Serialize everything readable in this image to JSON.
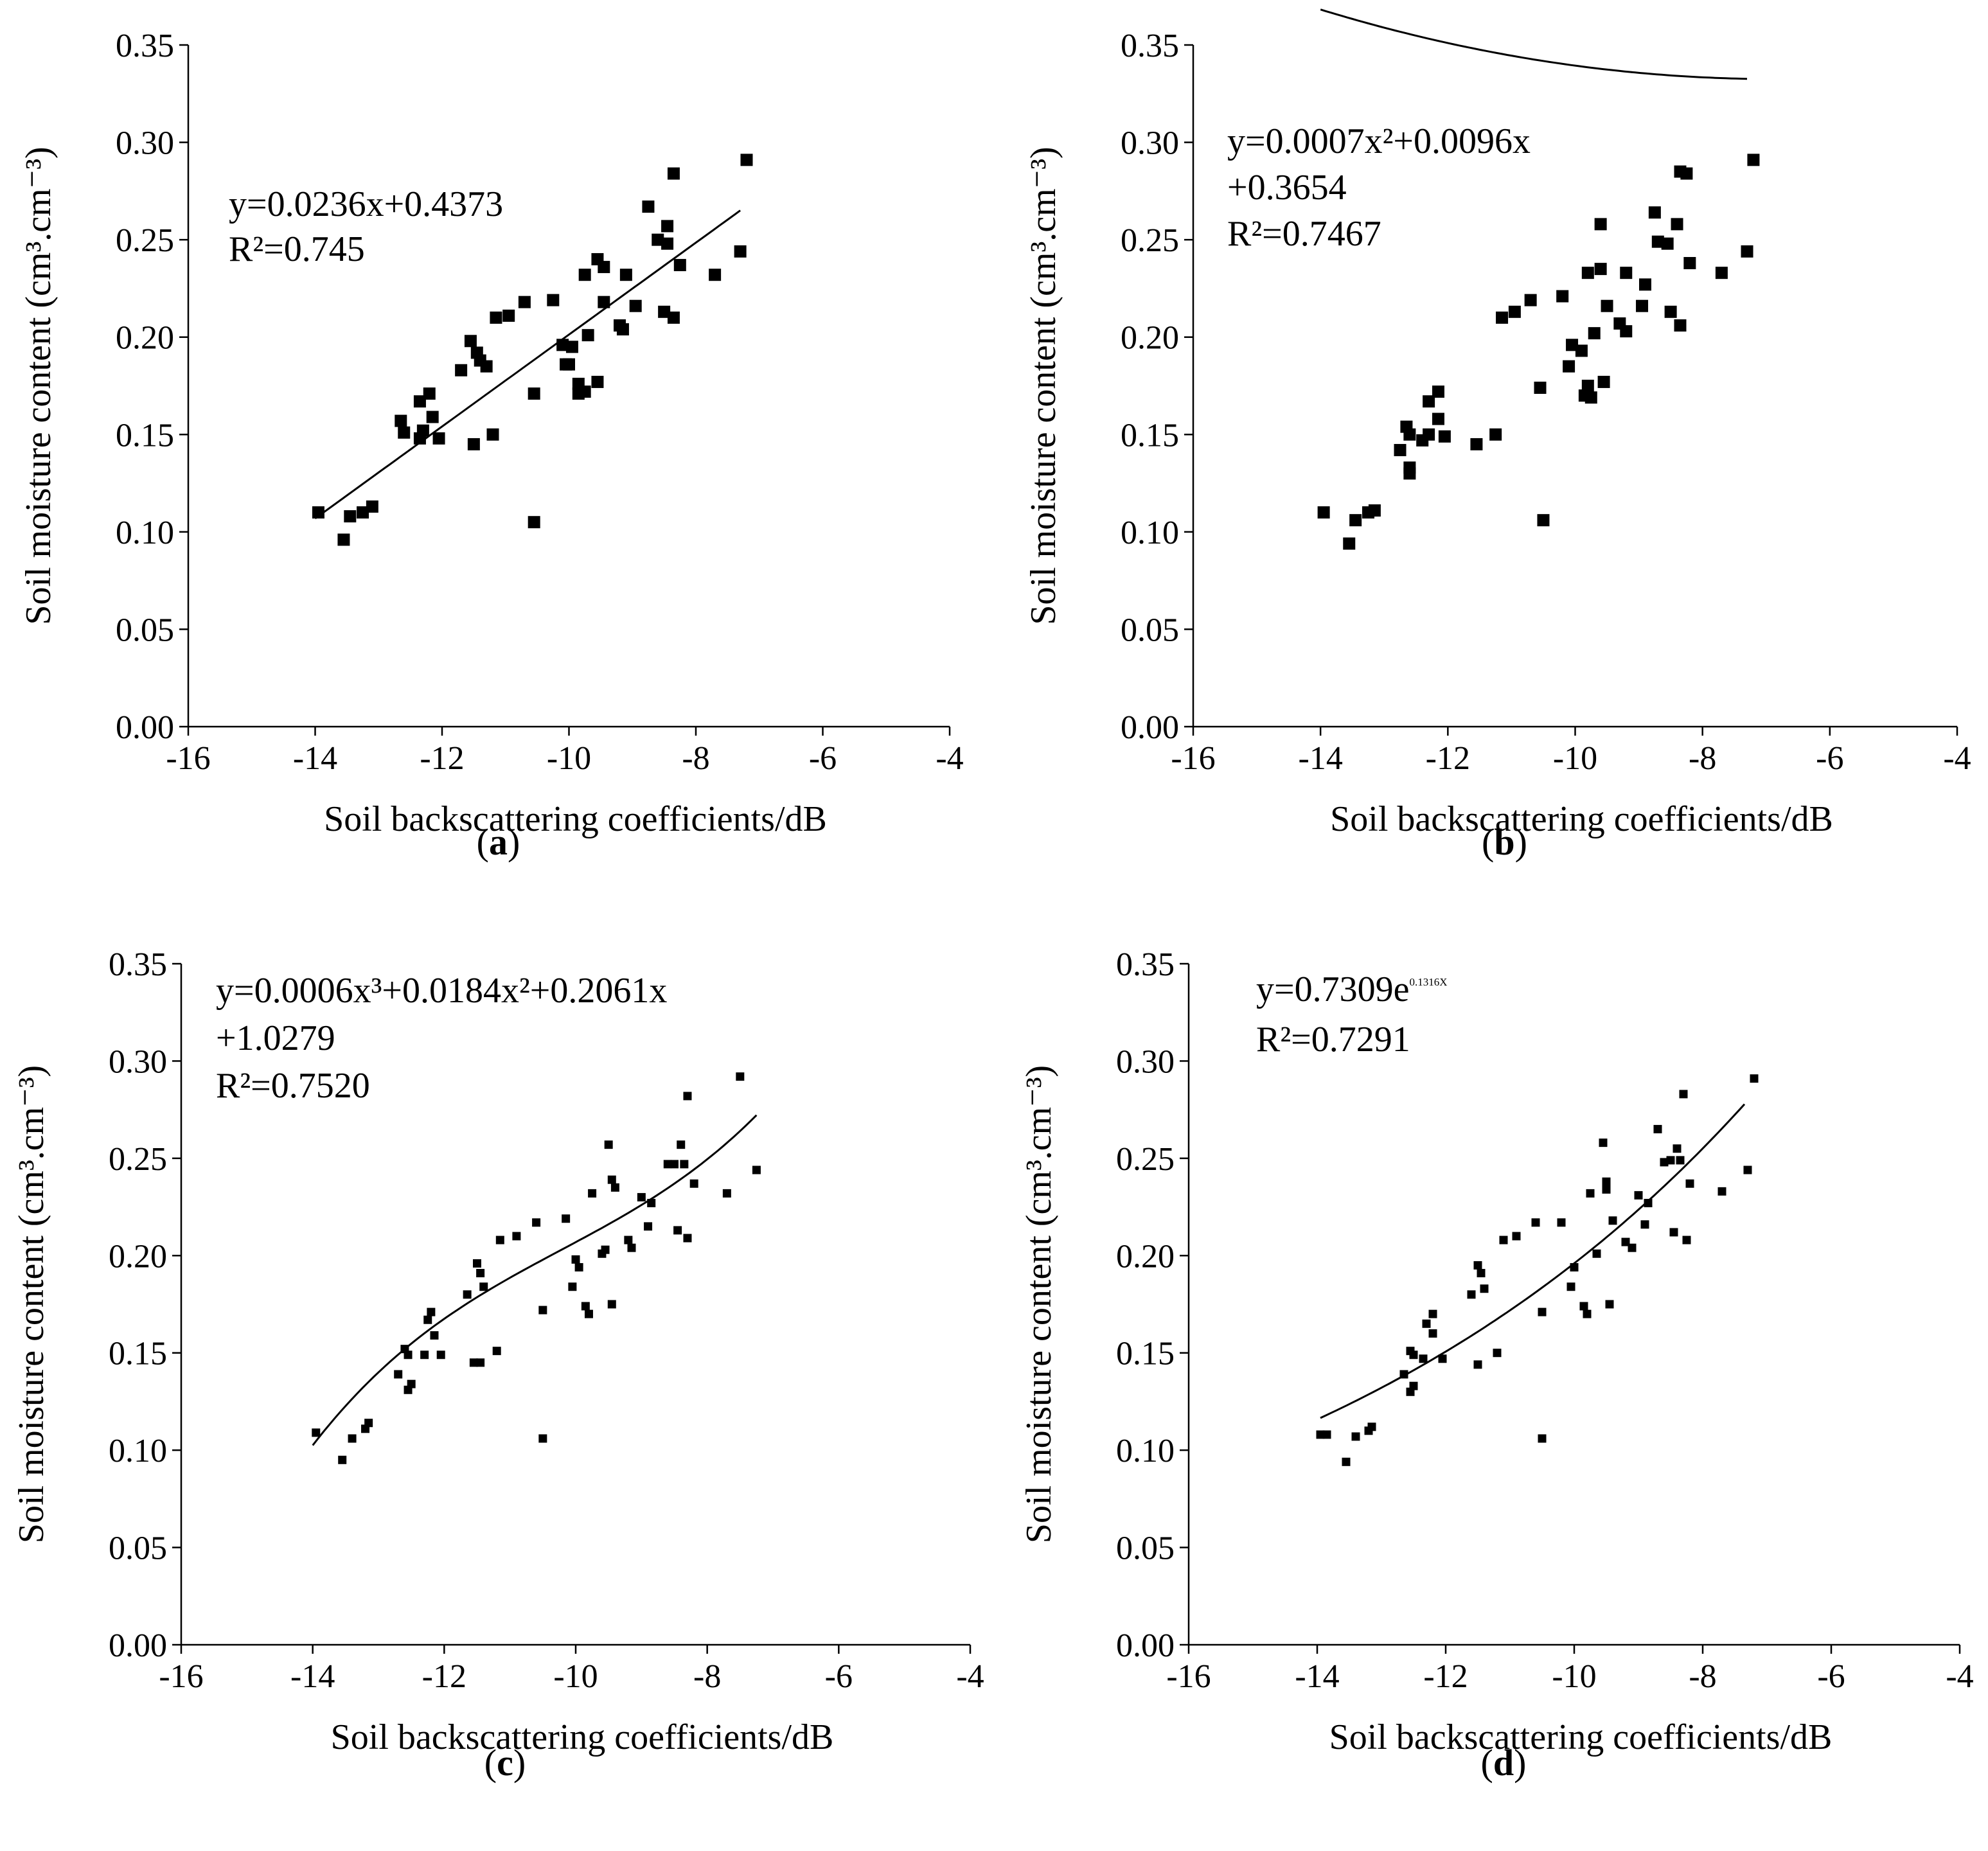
{
  "chart_data": [
    {
      "type": "scatter",
      "panel_label": "a",
      "fit": "linear",
      "coef": {
        "a": 0.0236,
        "b": 0.4373
      },
      "equation_lines": [
        "y=0.0236x+0.4373",
        "R²=0.745"
      ],
      "equation_sup": [],
      "fit_range": [
        -14,
        -7.3
      ],
      "xlabel": "Soil backscattering coefficients/dB",
      "ylabel": "Soil moisture content (cm³.cm⁻³)",
      "xlim": [
        -16,
        -4
      ],
      "ylim": [
        0,
        0.35
      ],
      "xticks": [
        "-16",
        "-14",
        "-12",
        "-10",
        "-8",
        "-6",
        "-4"
      ],
      "yticks": [
        "0.00",
        "0.05",
        "0.10",
        "0.15",
        "0.20",
        "0.25",
        "0.30",
        "0.35"
      ],
      "points": [
        [
          -13.95,
          0.11
        ],
        [
          -13.55,
          0.096
        ],
        [
          -13.45,
          0.108
        ],
        [
          -13.25,
          0.11
        ],
        [
          -13.1,
          0.113
        ],
        [
          -12.65,
          0.157
        ],
        [
          -12.6,
          0.151
        ],
        [
          -12.35,
          0.148
        ],
        [
          -12.35,
          0.167
        ],
        [
          -12.3,
          0.152
        ],
        [
          -12.2,
          0.171
        ],
        [
          -12.15,
          0.159
        ],
        [
          -12.05,
          0.148
        ],
        [
          -11.7,
          0.183
        ],
        [
          -11.55,
          0.198
        ],
        [
          -11.5,
          0.145
        ],
        [
          -11.45,
          0.192
        ],
        [
          -11.4,
          0.188
        ],
        [
          -11.3,
          0.185
        ],
        [
          -11.2,
          0.15
        ],
        [
          -11.15,
          0.21
        ],
        [
          -10.95,
          0.211
        ],
        [
          -10.7,
          0.218
        ],
        [
          -10.55,
          0.171
        ],
        [
          -10.55,
          0.105
        ],
        [
          -10.25,
          0.219
        ],
        [
          -10.1,
          0.196
        ],
        [
          -10.05,
          0.186
        ],
        [
          -10.0,
          0.186
        ],
        [
          -9.95,
          0.195
        ],
        [
          -9.85,
          0.176
        ],
        [
          -9.85,
          0.171
        ],
        [
          -9.75,
          0.172
        ],
        [
          -9.75,
          0.232
        ],
        [
          -9.7,
          0.201
        ],
        [
          -9.55,
          0.24
        ],
        [
          -9.55,
          0.177
        ],
        [
          -9.45,
          0.236
        ],
        [
          -9.45,
          0.218
        ],
        [
          -9.2,
          0.206
        ],
        [
          -9.15,
          0.204
        ],
        [
          -9.1,
          0.232
        ],
        [
          -8.95,
          0.216
        ],
        [
          -8.75,
          0.267
        ],
        [
          -8.6,
          0.25
        ],
        [
          -8.5,
          0.213
        ],
        [
          -8.45,
          0.257
        ],
        [
          -8.45,
          0.248
        ],
        [
          -8.35,
          0.284
        ],
        [
          -8.35,
          0.21
        ],
        [
          -8.25,
          0.237
        ],
        [
          -7.7,
          0.232
        ],
        [
          -7.3,
          0.244
        ],
        [
          -7.2,
          0.291
        ]
      ]
    },
    {
      "type": "scatter",
      "panel_label": "b",
      "fit": "quadratic",
      "coef": {
        "a": 0.0007,
        "b": 0.0096,
        "c": 0.3654
      },
      "equation_lines": [
        "y=0.0007x²+0.0096x",
        "+0.3654",
        "R²=0.7467"
      ],
      "equation_sup": [],
      "fit_range": [
        -14,
        -7.3
      ],
      "xlabel": "Soil backscattering coefficients/dB",
      "ylabel": "Soil moisture content (cm³.cm⁻³)",
      "xlim": [
        -16,
        -4
      ],
      "ylim": [
        0,
        0.35
      ],
      "xticks": [
        "-16",
        "-14",
        "-12",
        "-10",
        "-8",
        "-6",
        "-4"
      ],
      "yticks": [
        "0.00",
        "0.05",
        "0.10",
        "0.15",
        "0.20",
        "0.25",
        "0.30",
        "0.35"
      ],
      "points": [
        [
          -13.95,
          0.11
        ],
        [
          -13.55,
          0.094
        ],
        [
          -13.45,
          0.106
        ],
        [
          -13.25,
          0.11
        ],
        [
          -13.15,
          0.111
        ],
        [
          -12.75,
          0.142
        ],
        [
          -12.65,
          0.154
        ],
        [
          -12.6,
          0.15
        ],
        [
          -12.6,
          0.13
        ],
        [
          -12.6,
          0.133
        ],
        [
          -12.4,
          0.147
        ],
        [
          -12.3,
          0.15
        ],
        [
          -12.3,
          0.167
        ],
        [
          -12.15,
          0.172
        ],
        [
          -12.15,
          0.158
        ],
        [
          -12.05,
          0.149
        ],
        [
          -11.55,
          0.145
        ],
        [
          -11.25,
          0.15
        ],
        [
          -11.15,
          0.21
        ],
        [
          -10.95,
          0.213
        ],
        [
          -10.7,
          0.219
        ],
        [
          -10.55,
          0.174
        ],
        [
          -10.5,
          0.106
        ],
        [
          -10.2,
          0.221
        ],
        [
          -10.1,
          0.185
        ],
        [
          -10.05,
          0.196
        ],
        [
          -9.9,
          0.193
        ],
        [
          -9.85,
          0.17
        ],
        [
          -9.8,
          0.175
        ],
        [
          -9.8,
          0.233
        ],
        [
          -9.75,
          0.169
        ],
        [
          -9.7,
          0.202
        ],
        [
          -9.6,
          0.258
        ],
        [
          -9.6,
          0.235
        ],
        [
          -9.55,
          0.177
        ],
        [
          -9.5,
          0.216
        ],
        [
          -9.3,
          0.207
        ],
        [
          -9.2,
          0.233
        ],
        [
          -9.2,
          0.203
        ],
        [
          -8.95,
          0.216
        ],
        [
          -8.9,
          0.227
        ],
        [
          -8.75,
          0.264
        ],
        [
          -8.7,
          0.249
        ],
        [
          -8.55,
          0.248
        ],
        [
          -8.5,
          0.213
        ],
        [
          -8.4,
          0.258
        ],
        [
          -8.35,
          0.206
        ],
        [
          -8.35,
          0.285
        ],
        [
          -8.25,
          0.284
        ],
        [
          -8.2,
          0.238
        ],
        [
          -7.7,
          0.233
        ],
        [
          -7.3,
          0.244
        ],
        [
          -7.2,
          0.291
        ]
      ]
    },
    {
      "type": "scatter",
      "panel_label": "c",
      "fit": "cubic",
      "coef": {
        "a": 0.0006,
        "b": 0.0184,
        "c": 0.2061,
        "d": 1.0279
      },
      "equation_lines": [
        "y=0.0006x³+0.0184x²+0.2061x",
        "+1.0279",
        "R²=0.7520"
      ],
      "equation_sup": [],
      "fit_range": [
        -14,
        -7.25
      ],
      "xlabel": "Soil backscattering coefficients/dB",
      "ylabel": "Soil moisture content (cm³.cm⁻³)",
      "xlim": [
        -16,
        -4
      ],
      "ylim": [
        0,
        0.35
      ],
      "xticks": [
        "-16",
        "-14",
        "-12",
        "-10",
        "-8",
        "-6",
        "-4"
      ],
      "yticks": [
        "0.00",
        "0.05",
        "0.10",
        "0.15",
        "0.20",
        "0.25",
        "0.30",
        "0.35"
      ],
      "points": [
        [
          -13.95,
          0.109
        ],
        [
          -13.55,
          0.095
        ],
        [
          -13.4,
          0.106
        ],
        [
          -13.2,
          0.111
        ],
        [
          -13.15,
          0.114
        ],
        [
          -12.7,
          0.139
        ],
        [
          -12.6,
          0.152
        ],
        [
          -12.55,
          0.149
        ],
        [
          -12.55,
          0.131
        ],
        [
          -12.5,
          0.134
        ],
        [
          -12.3,
          0.149
        ],
        [
          -12.25,
          0.167
        ],
        [
          -12.2,
          0.171
        ],
        [
          -12.15,
          0.159
        ],
        [
          -12.05,
          0.149
        ],
        [
          -11.65,
          0.18
        ],
        [
          -11.55,
          0.145
        ],
        [
          -11.5,
          0.196
        ],
        [
          -11.45,
          0.145
        ],
        [
          -11.45,
          0.191
        ],
        [
          -11.4,
          0.184
        ],
        [
          -11.2,
          0.151
        ],
        [
          -11.15,
          0.208
        ],
        [
          -10.9,
          0.21
        ],
        [
          -10.6,
          0.217
        ],
        [
          -10.5,
          0.172
        ],
        [
          -10.5,
          0.106
        ],
        [
          -10.15,
          0.219
        ],
        [
          -10.05,
          0.184
        ],
        [
          -10.0,
          0.198
        ],
        [
          -9.95,
          0.194
        ],
        [
          -9.85,
          0.174
        ],
        [
          -9.8,
          0.17
        ],
        [
          -9.75,
          0.232
        ],
        [
          -9.6,
          0.201
        ],
        [
          -9.55,
          0.203
        ],
        [
          -9.5,
          0.257
        ],
        [
          -9.45,
          0.239
        ],
        [
          -9.4,
          0.235
        ],
        [
          -9.45,
          0.175
        ],
        [
          -9.2,
          0.208
        ],
        [
          -9.15,
          0.204
        ],
        [
          -9.0,
          0.23
        ],
        [
          -8.9,
          0.215
        ],
        [
          -8.85,
          0.227
        ],
        [
          -8.6,
          0.247
        ],
        [
          -8.5,
          0.247
        ],
        [
          -8.45,
          0.213
        ],
        [
          -8.4,
          0.257
        ],
        [
          -8.35,
          0.247
        ],
        [
          -8.3,
          0.282
        ],
        [
          -8.3,
          0.209
        ],
        [
          -8.2,
          0.237
        ],
        [
          -7.7,
          0.232
        ],
        [
          -7.5,
          0.292
        ],
        [
          -7.25,
          0.244
        ]
      ]
    },
    {
      "type": "scatter",
      "panel_label": "d",
      "fit": "exponential",
      "coef": {
        "a": 0.7309,
        "b": 0.1316
      },
      "equation_lines": [
        "y=0.7309e",
        "R²=0.7291"
      ],
      "equation_sup": [
        "0.1316X"
      ],
      "fit_range": [
        -13.95,
        -7.35
      ],
      "xlabel": "Soil backscattering coefficients/dB",
      "ylabel": "Soil moisture content (cm³.cm⁻³)",
      "xlim": [
        -16,
        -4
      ],
      "ylim": [
        0,
        0.35
      ],
      "xticks": [
        "-16",
        "-14",
        "-12",
        "-10",
        "-8",
        "-6",
        "-4"
      ],
      "yticks": [
        "0.00",
        "0.05",
        "0.10",
        "0.15",
        "0.20",
        "0.25",
        "0.30",
        "0.35"
      ],
      "points": [
        [
          -13.95,
          0.108
        ],
        [
          -13.85,
          0.108
        ],
        [
          -13.55,
          0.094
        ],
        [
          -13.4,
          0.107
        ],
        [
          -13.2,
          0.11
        ],
        [
          -13.15,
          0.112
        ],
        [
          -12.65,
          0.139
        ],
        [
          -12.55,
          0.151
        ],
        [
          -12.55,
          0.13
        ],
        [
          -12.5,
          0.133
        ],
        [
          -12.5,
          0.149
        ],
        [
          -12.35,
          0.147
        ],
        [
          -12.3,
          0.165
        ],
        [
          -12.2,
          0.17
        ],
        [
          -12.2,
          0.16
        ],
        [
          -12.05,
          0.147
        ],
        [
          -11.6,
          0.18
        ],
        [
          -11.5,
          0.144
        ],
        [
          -11.5,
          0.195
        ],
        [
          -11.45,
          0.191
        ],
        [
          -11.4,
          0.183
        ],
        [
          -11.2,
          0.15
        ],
        [
          -11.1,
          0.208
        ],
        [
          -10.9,
          0.21
        ],
        [
          -10.6,
          0.217
        ],
        [
          -10.5,
          0.171
        ],
        [
          -10.5,
          0.106
        ],
        [
          -10.2,
          0.217
        ],
        [
          -10.05,
          0.184
        ],
        [
          -10.0,
          0.194
        ],
        [
          -9.85,
          0.174
        ],
        [
          -9.8,
          0.17
        ],
        [
          -9.75,
          0.232
        ],
        [
          -9.65,
          0.201
        ],
        [
          -9.55,
          0.258
        ],
        [
          -9.5,
          0.238
        ],
        [
          -9.5,
          0.234
        ],
        [
          -9.45,
          0.175
        ],
        [
          -9.4,
          0.218
        ],
        [
          -9.2,
          0.207
        ],
        [
          -9.1,
          0.204
        ],
        [
          -9.0,
          0.231
        ],
        [
          -8.9,
          0.216
        ],
        [
          -8.85,
          0.227
        ],
        [
          -8.7,
          0.265
        ],
        [
          -8.6,
          0.248
        ],
        [
          -8.5,
          0.249
        ],
        [
          -8.45,
          0.212
        ],
        [
          -8.4,
          0.255
        ],
        [
          -8.35,
          0.249
        ],
        [
          -8.3,
          0.283
        ],
        [
          -8.25,
          0.208
        ],
        [
          -8.2,
          0.237
        ],
        [
          -7.7,
          0.233
        ],
        [
          -7.3,
          0.244
        ],
        [
          -7.2,
          0.291
        ]
      ]
    }
  ]
}
